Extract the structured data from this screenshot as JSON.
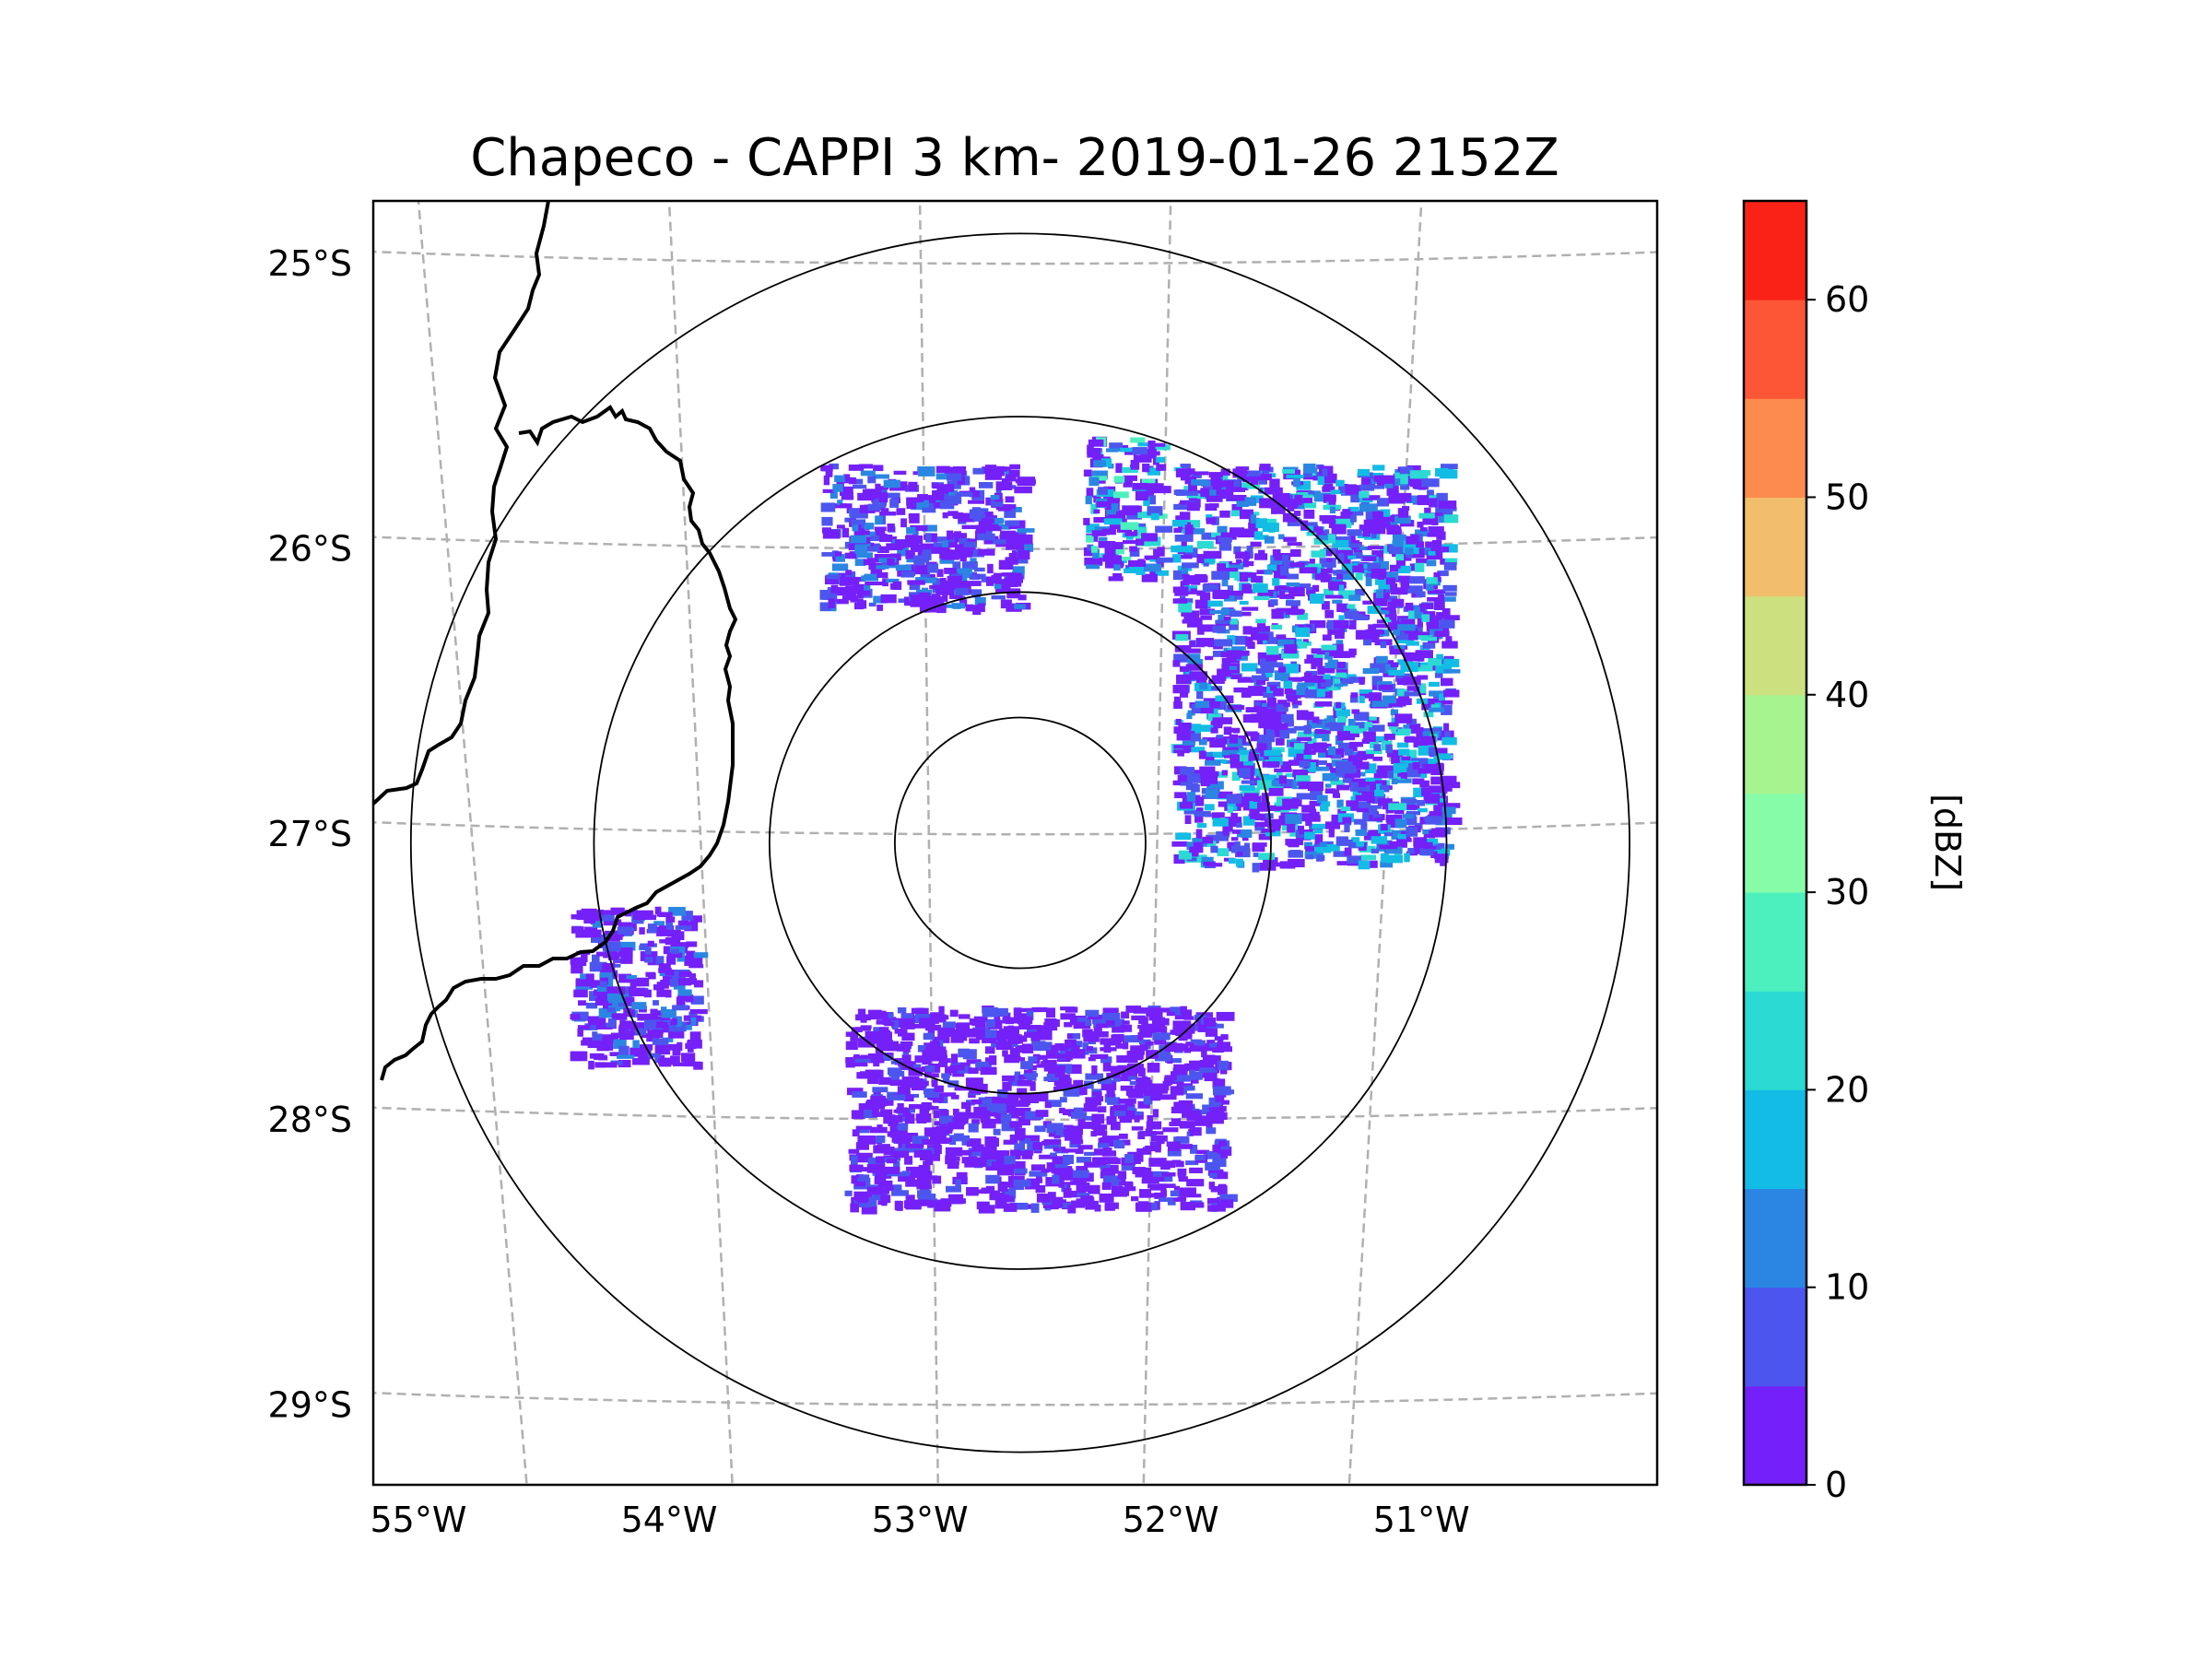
{
  "chart_data": {
    "type": "radar-ppi-map",
    "title": "Chapeco - CAPPI 3 km- 2019-01-26 2152Z",
    "x_axis": {
      "range_deg": [
        -55.18,
        -50.06
      ],
      "ticks": [
        {
          "value": -55,
          "label": "55°W"
        },
        {
          "value": -54,
          "label": "54°W"
        },
        {
          "value": -53,
          "label": "53°W"
        },
        {
          "value": -52,
          "label": "52°W"
        },
        {
          "value": -51,
          "label": "51°W"
        }
      ]
    },
    "y_axis": {
      "range_deg": [
        -29.28,
        -24.78
      ],
      "ticks": [
        {
          "value": -25,
          "label": "25°S"
        },
        {
          "value": -26,
          "label": "26°S"
        },
        {
          "value": -27,
          "label": "27°S"
        },
        {
          "value": -28,
          "label": "28°S"
        },
        {
          "value": -29,
          "label": "29°S"
        }
      ]
    },
    "gridlines": "dashed grey",
    "radar_site": {
      "lon": -52.6,
      "lat": -27.03
    },
    "range_rings_deg": [
      0.5,
      1.0,
      1.7,
      2.43
    ],
    "colorbar": {
      "label": "[dBZ]",
      "vmin": 0,
      "vmax": 65,
      "ticks": [
        {
          "value": 0,
          "label": "0"
        },
        {
          "value": 10,
          "label": "10"
        },
        {
          "value": 20,
          "label": "20"
        },
        {
          "value": 30,
          "label": "30"
        },
        {
          "value": 40,
          "label": "40"
        },
        {
          "value": 50,
          "label": "50"
        },
        {
          "value": 60,
          "label": "60"
        }
      ],
      "levels": [
        {
          "from": 0,
          "to": 5,
          "color": "#7420f8"
        },
        {
          "from": 5,
          "to": 10,
          "color": "#4c56ee"
        },
        {
          "from": 10,
          "to": 15,
          "color": "#2b86e3"
        },
        {
          "from": 15,
          "to": 20,
          "color": "#12bce5"
        },
        {
          "from": 20,
          "to": 25,
          "color": "#2bdad3"
        },
        {
          "from": 25,
          "to": 30,
          "color": "#4cf0bf"
        },
        {
          "from": 30,
          "to": 35,
          "color": "#86fca9"
        },
        {
          "from": 35,
          "to": 40,
          "color": "#a6f48f"
        },
        {
          "from": 40,
          "to": 45,
          "color": "#cce080"
        },
        {
          "from": 45,
          "to": 50,
          "color": "#f2be6c"
        },
        {
          "from": 50,
          "to": 55,
          "color": "#fe8b4e"
        },
        {
          "from": 55,
          "to": 60,
          "color": "#fd5636"
        },
        {
          "from": 60,
          "to": 65,
          "color": "#fa2217"
        }
      ]
    },
    "echo_regions": [
      {
        "name": "northeast-sector-band",
        "lon": [
          -52.0,
          -50.9
        ],
        "lat": [
          -27.1,
          -25.7
        ],
        "dbz_range": [
          0,
          25
        ]
      },
      {
        "name": "north-core",
        "lon": [
          -52.35,
          -52.05
        ],
        "lat": [
          -26.1,
          -25.6
        ],
        "dbz_max": 30
      },
      {
        "name": "northwest-patches",
        "lon": [
          -53.4,
          -52.6
        ],
        "lat": [
          -26.2,
          -25.7
        ],
        "dbz_range": [
          0,
          15
        ]
      },
      {
        "name": "southwest-cluster",
        "lon": [
          -54.4,
          -53.9
        ],
        "lat": [
          -27.8,
          -27.25
        ],
        "dbz_range": [
          0,
          15
        ]
      },
      {
        "name": "south-scatter",
        "lon": [
          -53.3,
          -51.8
        ],
        "lat": [
          -28.3,
          -27.6
        ],
        "dbz_range": [
          0,
          10
        ]
      }
    ]
  }
}
